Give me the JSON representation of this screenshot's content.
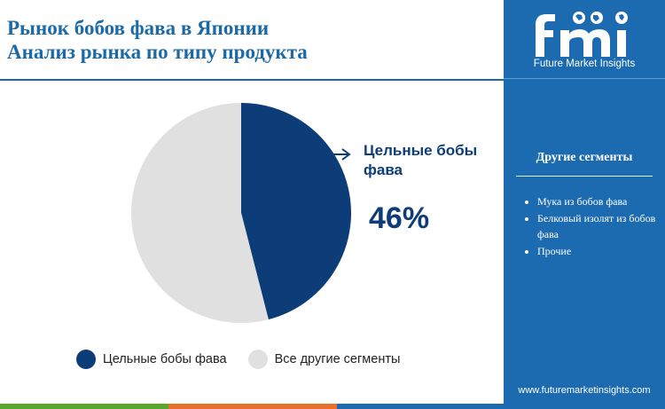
{
  "title": {
    "line1": "Рынок бобов фава в Японии",
    "line2": "Анализ рынка по типу продукта"
  },
  "chart_data": {
    "type": "pie",
    "categories": [
      "Цельные бобы фава",
      "Все другие сегменты"
    ],
    "values": [
      46,
      54
    ],
    "colors": [
      "#0d3d78",
      "#e0e0e0"
    ],
    "callout": {
      "label": "Цельные бобы фава",
      "value": "46%"
    },
    "legend": "bottom"
  },
  "sidebar": {
    "brand": "Future Market Insights",
    "heading": "Другие сегменты",
    "items": [
      "Мука из бобов фава",
      "Белковый изолят из бобов фава",
      "Прочие"
    ],
    "url": "www.futuremarketinsights.com"
  },
  "colors": {
    "accent": "#1c69a8",
    "sidebar_bg": "#1c6bb0",
    "bar": [
      "#59a82e",
      "#e8702a",
      "#1c6bb0"
    ]
  }
}
